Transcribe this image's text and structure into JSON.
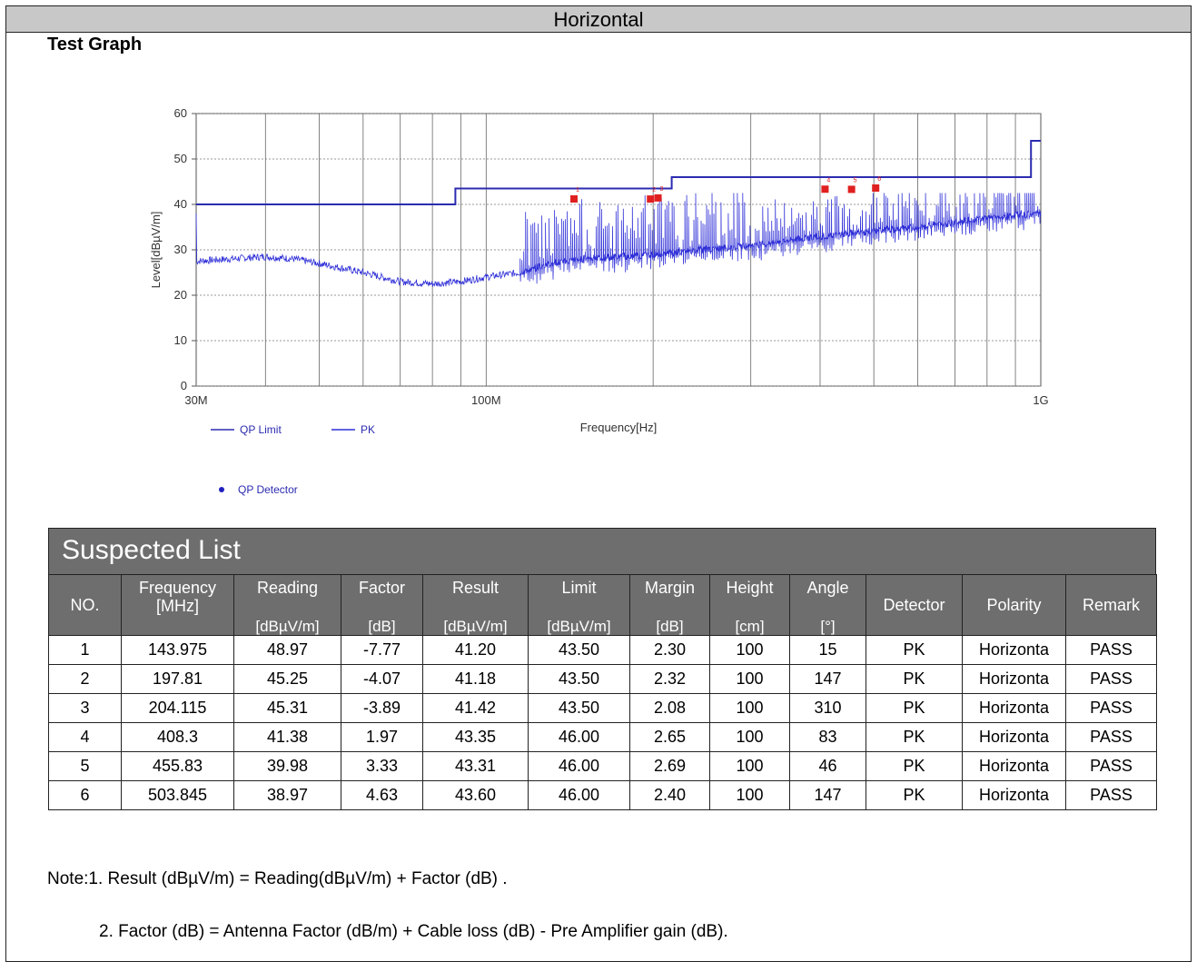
{
  "header": {
    "title": "Horizontal"
  },
  "section_title": "Test Graph",
  "chart_data": {
    "type": "line",
    "x_scale": "log",
    "x_range_hz": [
      30000000,
      1000000000
    ],
    "y_range": [
      0,
      60
    ],
    "y_ticks": [
      0,
      10,
      20,
      30,
      40,
      50,
      60
    ],
    "x_tick_labels": [
      {
        "x": 30000000,
        "label": "30M"
      },
      {
        "x": 100000000,
        "label": "100M"
      },
      {
        "x": 1000000000,
        "label": "1G"
      }
    ],
    "xlabel": "Frequency[Hz]",
    "ylabel": "Level[dBµV/m]",
    "grid": true,
    "legend": [
      "QP Limit",
      "PK",
      "QP Detector"
    ],
    "limit_line": {
      "name": "QP Limit",
      "color": "#2b2bb0",
      "points": [
        [
          30,
          40
        ],
        [
          88,
          40
        ],
        [
          88,
          43.5
        ],
        [
          216,
          43.5
        ],
        [
          216,
          46
        ],
        [
          960,
          46
        ],
        [
          960,
          54
        ],
        [
          1000,
          54
        ]
      ]
    },
    "pk_series": {
      "name": "PK",
      "color": "#2f2fd8",
      "baseline": [
        [
          30,
          27.5
        ],
        [
          40,
          28.5
        ],
        [
          45,
          28
        ],
        [
          50,
          27
        ],
        [
          60,
          25
        ],
        [
          70,
          23
        ],
        [
          80,
          22.5
        ],
        [
          90,
          23
        ],
        [
          100,
          24
        ],
        [
          115,
          25
        ],
        [
          130,
          27
        ],
        [
          150,
          28
        ],
        [
          200,
          29
        ],
        [
          300,
          31
        ],
        [
          400,
          33
        ],
        [
          600,
          35
        ],
        [
          800,
          37
        ],
        [
          1000,
          38
        ]
      ],
      "spikes": [
        [
          143.975,
          41
        ],
        [
          197.81,
          41
        ],
        [
          204.115,
          41.4
        ],
        [
          408.3,
          43
        ],
        [
          455.83,
          43
        ],
        [
          503.845,
          43.5
        ]
      ]
    },
    "qp_detector": {
      "name": "QP Detector",
      "color": "#e02020",
      "points": [
        {
          "no": 1,
          "x": 143.975,
          "y": 41.2
        },
        {
          "no": 2,
          "x": 197.81,
          "y": 41.18
        },
        {
          "no": 3,
          "x": 204.115,
          "y": 41.42
        },
        {
          "no": 4,
          "x": 408.3,
          "y": 43.35
        },
        {
          "no": 5,
          "x": 455.83,
          "y": 43.31
        },
        {
          "no": 6,
          "x": 503.845,
          "y": 43.6
        }
      ]
    }
  },
  "suspected_list": {
    "title": "Suspected List",
    "columns": [
      {
        "name": "NO.",
        "unit": ""
      },
      {
        "name": "Frequency [MHz]",
        "unit": ""
      },
      {
        "name": "Reading",
        "unit": "[dBµV/m]"
      },
      {
        "name": "Factor",
        "unit": "[dB]"
      },
      {
        "name": "Result",
        "unit": "[dBµV/m]"
      },
      {
        "name": "Limit",
        "unit": "[dBµV/m]"
      },
      {
        "name": "Margin",
        "unit": "[dB]"
      },
      {
        "name": "Height",
        "unit": "[cm]"
      },
      {
        "name": "Angle",
        "unit": "[°]"
      },
      {
        "name": "Detector",
        "unit": ""
      },
      {
        "name": "Polarity",
        "unit": ""
      },
      {
        "name": "Remark",
        "unit": ""
      }
    ],
    "rows": [
      [
        "1",
        "143.975",
        "48.97",
        "-7.77",
        "41.20",
        "43.50",
        "2.30",
        "100",
        "15",
        "PK",
        "Horizonta",
        "PASS"
      ],
      [
        "2",
        "197.81",
        "45.25",
        "-4.07",
        "41.18",
        "43.50",
        "2.32",
        "100",
        "147",
        "PK",
        "Horizonta",
        "PASS"
      ],
      [
        "3",
        "204.115",
        "45.31",
        "-3.89",
        "41.42",
        "43.50",
        "2.08",
        "100",
        "310",
        "PK",
        "Horizonta",
        "PASS"
      ],
      [
        "4",
        "408.3",
        "41.38",
        "1.97",
        "43.35",
        "46.00",
        "2.65",
        "100",
        "83",
        "PK",
        "Horizonta",
        "PASS"
      ],
      [
        "5",
        "455.83",
        "39.98",
        "3.33",
        "43.31",
        "46.00",
        "2.69",
        "100",
        "46",
        "PK",
        "Horizonta",
        "PASS"
      ],
      [
        "6",
        "503.845",
        "38.97",
        "4.63",
        "43.60",
        "46.00",
        "2.40",
        "100",
        "147",
        "PK",
        "Horizonta",
        "PASS"
      ]
    ]
  },
  "notes": {
    "note1": "Note:1. Result (dBµV/m) = Reading(dBµV/m) + Factor (dB) .",
    "note2": "2. Factor (dB) = Antenna Factor (dB/m) + Cable loss (dB) - Pre Amplifier gain (dB)."
  }
}
